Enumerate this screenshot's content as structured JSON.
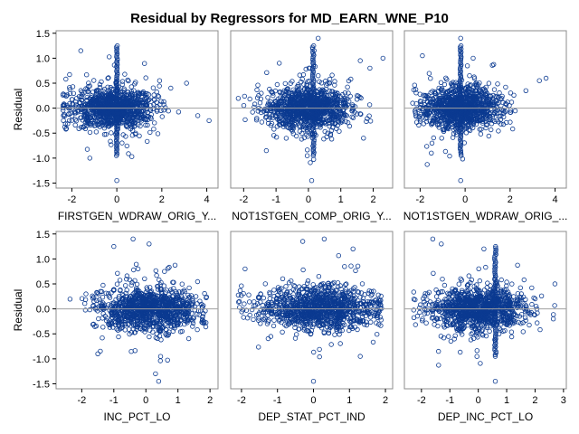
{
  "chart_data": {
    "type": "scatter",
    "title": "Residual by Regressors for MD_EARN_WNE_P10",
    "ylabel": "Residual",
    "ylim": [
      -1.6,
      1.55
    ],
    "yticks": [
      "1.5",
      "1.0",
      "0.5",
      "0.0",
      "-0.5",
      "-1.0",
      "-1.5"
    ],
    "reference_line_y": 0,
    "marker": "open circle",
    "marker_color": "#0b3a91",
    "reference_line_color": "#a0a0a0",
    "panels": [
      {
        "xlabel": "FIRSTGEN_WDRAW_ORIG_Y...",
        "xlim": [
          -2.7,
          4.5
        ],
        "xticks": [
          "-2",
          "0",
          "2",
          "4"
        ],
        "dist": {
          "centers": [
            -0.2
          ],
          "spread": 0.9,
          "min": -2.4,
          "max": 2.9
        },
        "outliers": [
          {
            "x": -1.6,
            "y": 1.15
          },
          {
            "x": 1.9,
            "y": 0.55
          },
          {
            "x": 2.4,
            "y": 0.4
          },
          {
            "x": 3.1,
            "y": 0.5
          },
          {
            "x": 4.1,
            "y": -0.25
          },
          {
            "x": 3.6,
            "y": -0.15
          },
          {
            "x": -1.2,
            "y": -1.0
          },
          {
            "x": 0.0,
            "y": -1.45
          },
          {
            "x": -2.4,
            "y": 0.05
          }
        ],
        "spike_x": 0.0
      },
      {
        "xlabel": "NOT1STGEN_COMP_ORIG_Y...",
        "xlim": [
          -2.4,
          2.6
        ],
        "xticks": [
          "-2",
          "-1",
          "0",
          "1",
          "2"
        ],
        "dist": {
          "centers": [
            0.0
          ],
          "spread": 0.65,
          "min": -2.2,
          "max": 2.0
        },
        "outliers": [
          {
            "x": 0.3,
            "y": 1.4
          },
          {
            "x": 1.6,
            "y": 0.95
          },
          {
            "x": 1.9,
            "y": 0.8
          },
          {
            "x": 2.3,
            "y": 1.0
          },
          {
            "x": -0.9,
            "y": 0.9
          },
          {
            "x": 0.1,
            "y": -1.45
          },
          {
            "x": -1.3,
            "y": -0.85
          },
          {
            "x": 1.7,
            "y": -0.6
          }
        ],
        "spike_x": 0.15
      },
      {
        "xlabel": "NOT1STGEN_WDRAW_ORIG_...",
        "xlim": [
          -2.7,
          4.5
        ],
        "xticks": [
          "-2",
          "0",
          "2",
          "4"
        ],
        "dist": {
          "centers": [
            -0.2
          ],
          "spread": 0.85,
          "min": -2.4,
          "max": 2.6
        },
        "outliers": [
          {
            "x": -1.9,
            "y": 1.05
          },
          {
            "x": -0.2,
            "y": 1.4
          },
          {
            "x": 3.3,
            "y": 0.55
          },
          {
            "x": 3.6,
            "y": 0.6
          },
          {
            "x": 2.7,
            "y": 0.35
          },
          {
            "x": -0.2,
            "y": -1.45
          },
          {
            "x": -1.5,
            "y": -0.9
          }
        ],
        "spike_x": -0.2
      },
      {
        "xlabel": "INC_PCT_LO",
        "xlim": [
          -2.8,
          2.25
        ],
        "xticks": [
          "-2",
          "-1",
          "0",
          "1",
          "2"
        ],
        "dist": {
          "centers": [
            -0.3,
            0.5
          ],
          "spread": 0.7,
          "min": -2.4,
          "max": 1.9
        },
        "outliers": [
          {
            "x": -0.4,
            "y": 1.4
          },
          {
            "x": -1.0,
            "y": 1.25
          },
          {
            "x": 0.1,
            "y": 1.3
          },
          {
            "x": 0.4,
            "y": -1.45
          },
          {
            "x": 0.3,
            "y": -1.3
          },
          {
            "x": -1.5,
            "y": -0.9
          }
        ],
        "spike_x": null
      },
      {
        "xlabel": "DEP_STAT_PCT_IND",
        "xlim": [
          -2.3,
          2.2
        ],
        "xticks": [
          "-2",
          "-1",
          "0",
          "1",
          "2"
        ],
        "dist": {
          "centers": [
            -0.2,
            0.6
          ],
          "spread": 0.75,
          "min": -2.1,
          "max": 1.9
        },
        "outliers": [
          {
            "x": 0.3,
            "y": 1.4
          },
          {
            "x": -0.3,
            "y": 1.35
          },
          {
            "x": 1.1,
            "y": 1.2
          },
          {
            "x": 0.0,
            "y": -1.45
          },
          {
            "x": 1.3,
            "y": -0.95
          },
          {
            "x": -1.9,
            "y": 0.8
          }
        ],
        "spike_x": null
      },
      {
        "xlabel": "DEP_INC_PCT_LO",
        "xlim": [
          -2.6,
          3.1
        ],
        "xticks": [
          "-2",
          "-1",
          "0",
          "1",
          "2",
          "3"
        ],
        "dist": {
          "centers": [
            0.0
          ],
          "spread": 0.8,
          "min": -2.3,
          "max": 2.8
        },
        "outliers": [
          {
            "x": -1.6,
            "y": 1.4
          },
          {
            "x": -1.3,
            "y": 1.3
          },
          {
            "x": 0.2,
            "y": 1.2
          },
          {
            "x": 0.6,
            "y": -1.45
          },
          {
            "x": -1.4,
            "y": -0.85
          },
          {
            "x": 2.7,
            "y": 0.5
          }
        ],
        "spike_x": 0.6
      }
    ]
  }
}
